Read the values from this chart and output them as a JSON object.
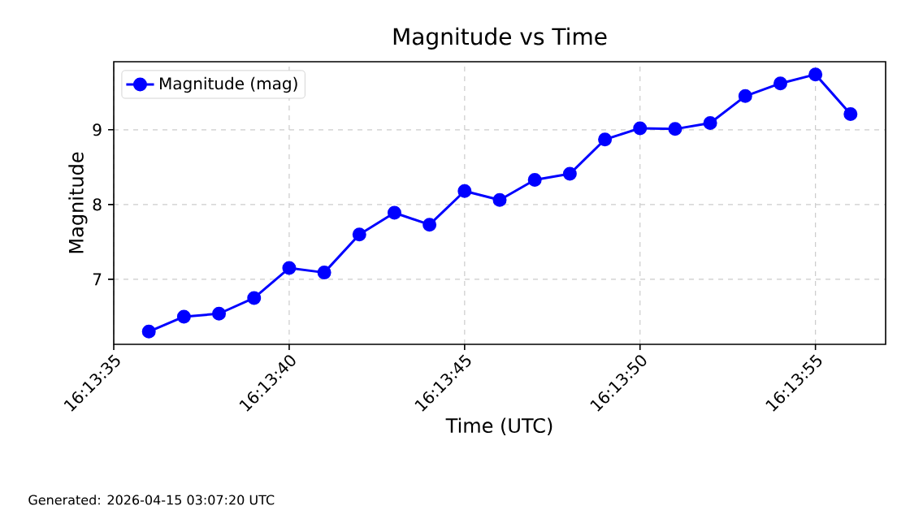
{
  "chart_data": {
    "type": "line",
    "title": "Magnitude vs Time",
    "xlabel": "Time (UTC)",
    "ylabel": "Magnitude",
    "annotations": [
      "Generated: 2026-04-15 03:07:20 UTC"
    ],
    "x": [
      16.2266667,
      16.2269444,
      16.2272222,
      16.2275,
      16.2277778,
      16.2280556,
      16.2283333,
      16.2286111,
      16.2288889,
      16.2291667,
      16.2294444,
      16.2297222,
      16.23,
      16.2302778,
      16.2305556,
      16.2308333,
      16.2311111,
      16.2313889,
      16.2316667,
      16.2319444,
      16.2322222
    ],
    "series": [
      {
        "name": "Magnitude (mag)",
        "color": "#0000ff",
        "values": [
          6.3,
          6.5,
          6.54,
          6.75,
          7.15,
          7.09,
          7.6,
          7.89,
          7.73,
          8.18,
          8.06,
          8.33,
          8.41,
          8.87,
          9.02,
          9.01,
          9.09,
          9.45,
          9.62,
          9.74,
          9.21
        ]
      }
    ],
    "xlim": [
      16.2263889,
      16.2325
    ],
    "ylim": [
      6.13,
      9.91
    ],
    "xticks": [
      {
        "value": 16.2263889,
        "label": "16:13:35"
      },
      {
        "value": 16.2277778,
        "label": "16:13:40"
      },
      {
        "value": 16.2291667,
        "label": "16:13:45"
      },
      {
        "value": 16.2305556,
        "label": "16:13:50"
      },
      {
        "value": 16.2319444,
        "label": "16:13:55"
      }
    ],
    "yticks": [
      7,
      8,
      9
    ],
    "grid": true,
    "legend": "top left",
    "marker": "circle",
    "line_style": "solid"
  }
}
